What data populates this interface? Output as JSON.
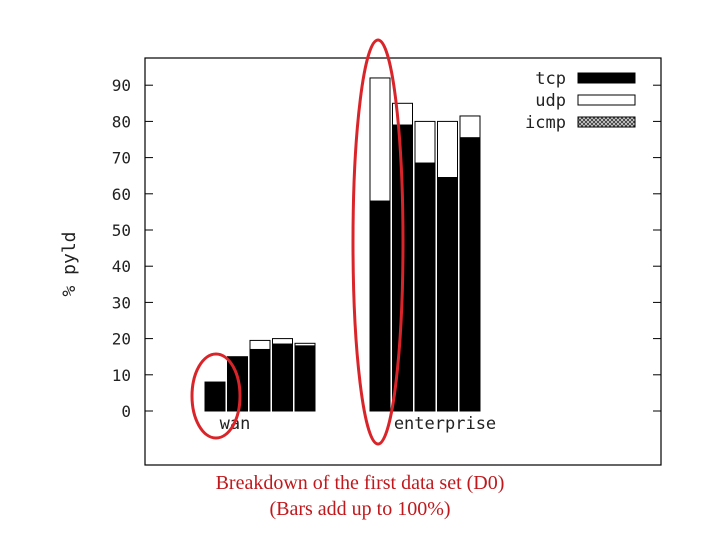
{
  "chart_data": {
    "type": "bar",
    "stacked": true,
    "ylabel": "% pyld",
    "xlabel": "",
    "ylim": [
      -15,
      95
    ],
    "yticks": [
      0,
      10,
      20,
      30,
      40,
      50,
      60,
      70,
      80,
      90
    ],
    "legend_position": "top-right",
    "grid": false,
    "groups": [
      {
        "label": "wan",
        "bars": [
          {
            "tcp": 8,
            "udp": 0,
            "icmp": 0
          },
          {
            "tcp": 15,
            "udp": 0,
            "icmp": 0
          },
          {
            "tcp": 17,
            "udp": 2.5,
            "icmp": 0
          },
          {
            "tcp": 18.5,
            "udp": 1.5,
            "icmp": 0
          },
          {
            "tcp": 18,
            "udp": 0.7,
            "icmp": 0
          }
        ]
      },
      {
        "label": "enterprise",
        "bars": [
          {
            "tcp": 58,
            "udp": 34,
            "icmp": 0
          },
          {
            "tcp": 79,
            "udp": 6,
            "icmp": 0
          },
          {
            "tcp": 68.5,
            "udp": 11.5,
            "icmp": 0
          },
          {
            "tcp": 64.5,
            "udp": 15.5,
            "icmp": 0
          },
          {
            "tcp": 75.5,
            "udp": 6,
            "icmp": 0
          }
        ]
      }
    ],
    "series": [
      {
        "name": "tcp",
        "color": "#000000"
      },
      {
        "name": "udp",
        "color": "#ffffff"
      },
      {
        "name": "icmp",
        "color": "#bdbdbd",
        "pattern": "crosshatch"
      }
    ],
    "highlight_color": "#d9252a"
  },
  "caption": {
    "line1": "Breakdown of the first data set (D0)",
    "line2": "(Bars add up to 100%)"
  }
}
